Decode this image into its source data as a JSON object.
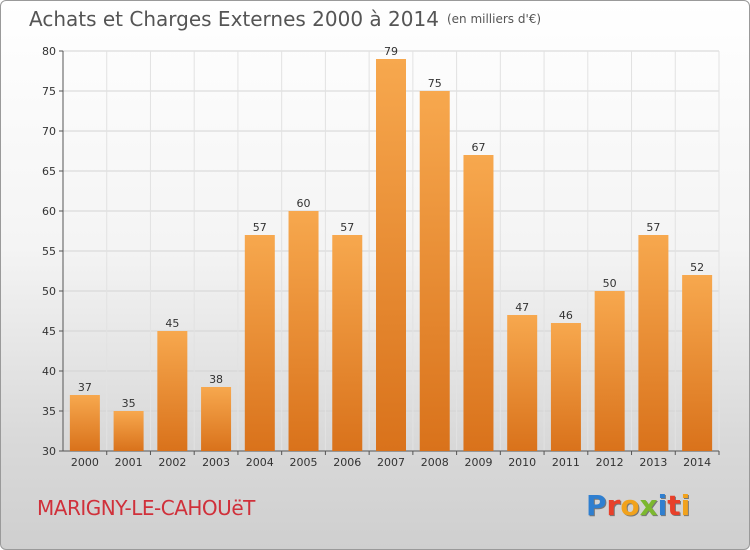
{
  "header": {
    "title": "Achats et Charges Externes 2000 à 2014",
    "subtitle": "(en milliers d'€)"
  },
  "footer": {
    "place": "MARIGNY-LE-CAHOUëT",
    "brand_letters": [
      {
        "ch": "P",
        "color": "#2f7fd0"
      },
      {
        "ch": "r",
        "color": "#e8402a"
      },
      {
        "ch": "o",
        "color": "#f1a21c"
      },
      {
        "ch": "x",
        "color": "#7cb82f"
      },
      {
        "ch": "i",
        "color": "#2f7fd0"
      },
      {
        "ch": "t",
        "color": "#e8402a"
      },
      {
        "ch": "i",
        "color": "#f1a21c"
      }
    ]
  },
  "chart_data": {
    "type": "bar",
    "title": "Achats et Charges Externes 2000 à 2014",
    "subtitle": "(en milliers d'€)",
    "categories": [
      "2000",
      "2001",
      "2002",
      "2003",
      "2004",
      "2005",
      "2006",
      "2007",
      "2008",
      "2009",
      "2010",
      "2011",
      "2012",
      "2013",
      "2014"
    ],
    "values": [
      37,
      35,
      45,
      38,
      57,
      60,
      57,
      79,
      75,
      67,
      47,
      46,
      50,
      57,
      52
    ],
    "ylim": [
      30,
      80
    ],
    "yticks": [
      30,
      35,
      40,
      45,
      50,
      55,
      60,
      65,
      70,
      75,
      80
    ],
    "grid": true,
    "bar_color": "#f0963a",
    "legend": "none"
  }
}
